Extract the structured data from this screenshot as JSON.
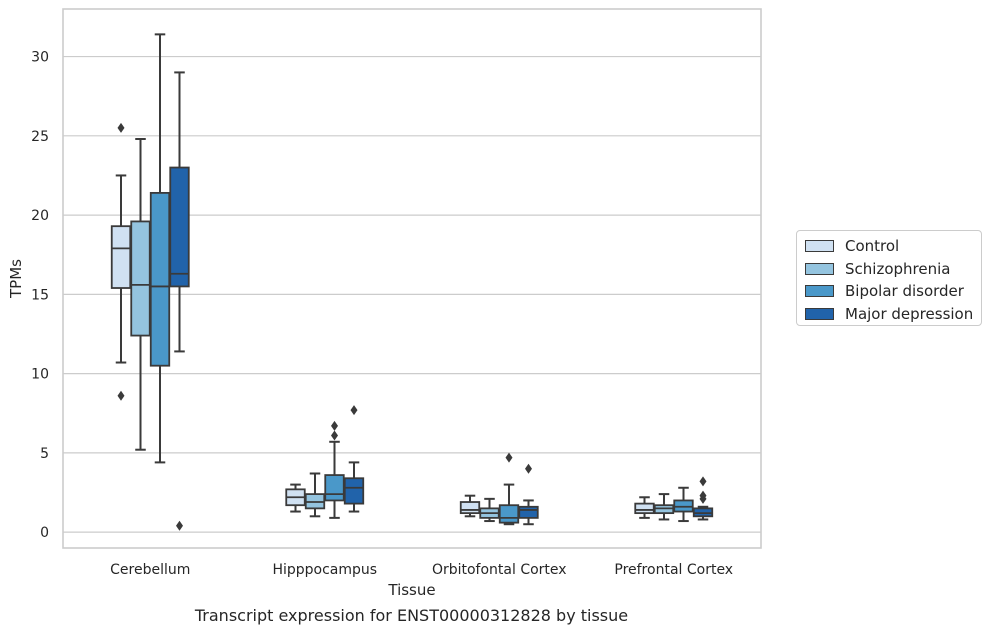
{
  "chart_data": {
    "type": "box",
    "title": "Transcript expression for ENST00000312828 by tissue",
    "xlabel": "Tissue",
    "ylabel": "TPMs",
    "ylim": [
      -1,
      33
    ],
    "yticks": [
      0,
      5,
      10,
      15,
      20,
      25,
      30
    ],
    "grid": "horizontal",
    "legend_position": "right",
    "categories": [
      "Cerebellum",
      "Hipppocampus",
      "Orbitofontal Cortex",
      "Prefrontal Cortex"
    ],
    "series": [
      {
        "name": "Control",
        "color": "#d0e1f2",
        "boxes": [
          {
            "whislo": 10.7,
            "q1": 15.4,
            "med": 17.9,
            "q3": 19.3,
            "whishi": 22.5,
            "fliers": [
              25.5,
              8.6
            ]
          },
          {
            "whislo": 1.3,
            "q1": 1.7,
            "med": 2.2,
            "q3": 2.7,
            "whishi": 3.0,
            "fliers": []
          },
          {
            "whislo": 1.0,
            "q1": 1.2,
            "med": 1.4,
            "q3": 1.9,
            "whishi": 2.3,
            "fliers": []
          },
          {
            "whislo": 0.9,
            "q1": 1.2,
            "med": 1.4,
            "q3": 1.8,
            "whishi": 2.2,
            "fliers": []
          }
        ]
      },
      {
        "name": "Schizophrenia",
        "color": "#94c4df",
        "boxes": [
          {
            "whislo": 5.2,
            "q1": 12.4,
            "med": 15.6,
            "q3": 19.6,
            "whishi": 24.8,
            "fliers": []
          },
          {
            "whislo": 1.0,
            "q1": 1.5,
            "med": 1.9,
            "q3": 2.4,
            "whishi": 3.7,
            "fliers": []
          },
          {
            "whislo": 0.7,
            "q1": 0.9,
            "med": 1.2,
            "q3": 1.5,
            "whishi": 2.1,
            "fliers": []
          },
          {
            "whislo": 0.8,
            "q1": 1.2,
            "med": 1.5,
            "q3": 1.7,
            "whishi": 2.4,
            "fliers": []
          }
        ]
      },
      {
        "name": "Bipolar disorder",
        "color": "#4a98c9",
        "boxes": [
          {
            "whislo": 4.4,
            "q1": 10.5,
            "med": 15.5,
            "q3": 21.4,
            "whishi": 31.4,
            "fliers": []
          },
          {
            "whislo": 0.9,
            "q1": 2.0,
            "med": 2.4,
            "q3": 3.6,
            "whishi": 5.7,
            "fliers": [
              6.7,
              6.1
            ]
          },
          {
            "whislo": 0.5,
            "q1": 0.6,
            "med": 0.9,
            "q3": 1.7,
            "whishi": 3.0,
            "fliers": [
              4.7
            ]
          },
          {
            "whislo": 0.7,
            "q1": 1.3,
            "med": 1.6,
            "q3": 2.0,
            "whishi": 2.8,
            "fliers": []
          }
        ]
      },
      {
        "name": "Major depression",
        "color": "#2163aa",
        "boxes": [
          {
            "whislo": 11.4,
            "q1": 15.5,
            "med": 16.3,
            "q3": 23.0,
            "whishi": 29.0,
            "fliers": [
              0.4
            ]
          },
          {
            "whislo": 1.3,
            "q1": 1.8,
            "med": 2.8,
            "q3": 3.4,
            "whishi": 4.4,
            "fliers": [
              7.7
            ]
          },
          {
            "whislo": 0.5,
            "q1": 0.9,
            "med": 1.4,
            "q3": 1.6,
            "whishi": 2.0,
            "fliers": [
              4.0
            ]
          },
          {
            "whislo": 0.8,
            "q1": 1.0,
            "med": 1.2,
            "q3": 1.5,
            "whishi": 1.6,
            "fliers": [
              3.2,
              2.3,
              2.1
            ]
          }
        ]
      }
    ]
  }
}
